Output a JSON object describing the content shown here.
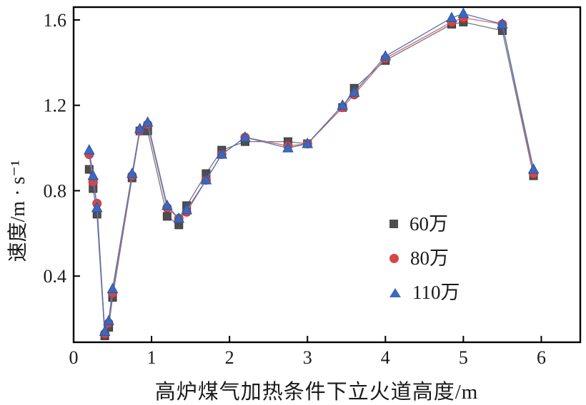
{
  "chart_data": {
    "type": "line",
    "title": "",
    "xlabel": "高炉煤气加热条件下立火道高度/m",
    "ylabel": "速度/m · s⁻¹",
    "xlim": [
      0,
      6.5
    ],
    "ylim": [
      0.09,
      1.66
    ],
    "x_ticks": [
      "0",
      "1",
      "2",
      "3",
      "4",
      "5",
      "6"
    ],
    "x_tick_values": [
      0,
      1,
      2,
      3,
      4,
      5,
      6
    ],
    "y_ticks": [
      "0.4",
      "0.8",
      "1.2",
      "1.6"
    ],
    "y_tick_values": [
      0.4,
      0.8,
      1.2,
      1.6
    ],
    "grid": false,
    "legend_position": "inside-right",
    "x": [
      0.2,
      0.25,
      0.3,
      0.4,
      0.45,
      0.5,
      0.75,
      0.85,
      0.95,
      1.2,
      1.35,
      1.45,
      1.7,
      1.9,
      2.2,
      2.75,
      3.0,
      3.45,
      3.6,
      4.0,
      4.85,
      5.0,
      5.5,
      5.9
    ],
    "series": [
      {
        "name": "60万",
        "marker": "square",
        "marker_color": "#4e4e52",
        "line_color": "#74747f",
        "values": [
          0.9,
          0.81,
          0.69,
          0.12,
          0.16,
          0.3,
          0.86,
          1.08,
          1.08,
          0.68,
          0.64,
          0.73,
          0.88,
          0.99,
          1.03,
          1.03,
          1.02,
          1.19,
          1.28,
          1.41,
          1.58,
          1.59,
          1.55,
          0.87
        ]
      },
      {
        "name": "80万",
        "marker": "circle",
        "marker_color": "#d94545",
        "line_color": "#cc6a6a",
        "values": [
          0.97,
          0.84,
          0.74,
          0.13,
          0.18,
          0.32,
          0.87,
          1.08,
          1.11,
          0.72,
          0.67,
          0.7,
          0.85,
          0.97,
          1.05,
          1.01,
          1.02,
          1.19,
          1.25,
          1.42,
          1.59,
          1.61,
          1.58,
          0.88
        ]
      },
      {
        "name": "110万",
        "marker": "triangle",
        "marker_color": "#3b69bd",
        "line_color": "#5472b8",
        "values": [
          0.99,
          0.87,
          0.72,
          0.14,
          0.19,
          0.34,
          0.88,
          1.09,
          1.12,
          0.73,
          0.67,
          0.71,
          0.85,
          0.97,
          1.05,
          1.0,
          1.02,
          1.2,
          1.26,
          1.43,
          1.61,
          1.63,
          1.58,
          0.9
        ]
      }
    ],
    "axis_color": "#000000",
    "tick_label_color": "#1a1a1a",
    "tick_label_font_size": 26
  },
  "legend": {
    "items": [
      {
        "label": "60万",
        "marker": "square",
        "color": "#4e4e52"
      },
      {
        "label": "80万",
        "marker": "circle",
        "color": "#d94545"
      },
      {
        "label": "110万",
        "marker": "triangle",
        "color": "#3b69bd"
      }
    ]
  }
}
